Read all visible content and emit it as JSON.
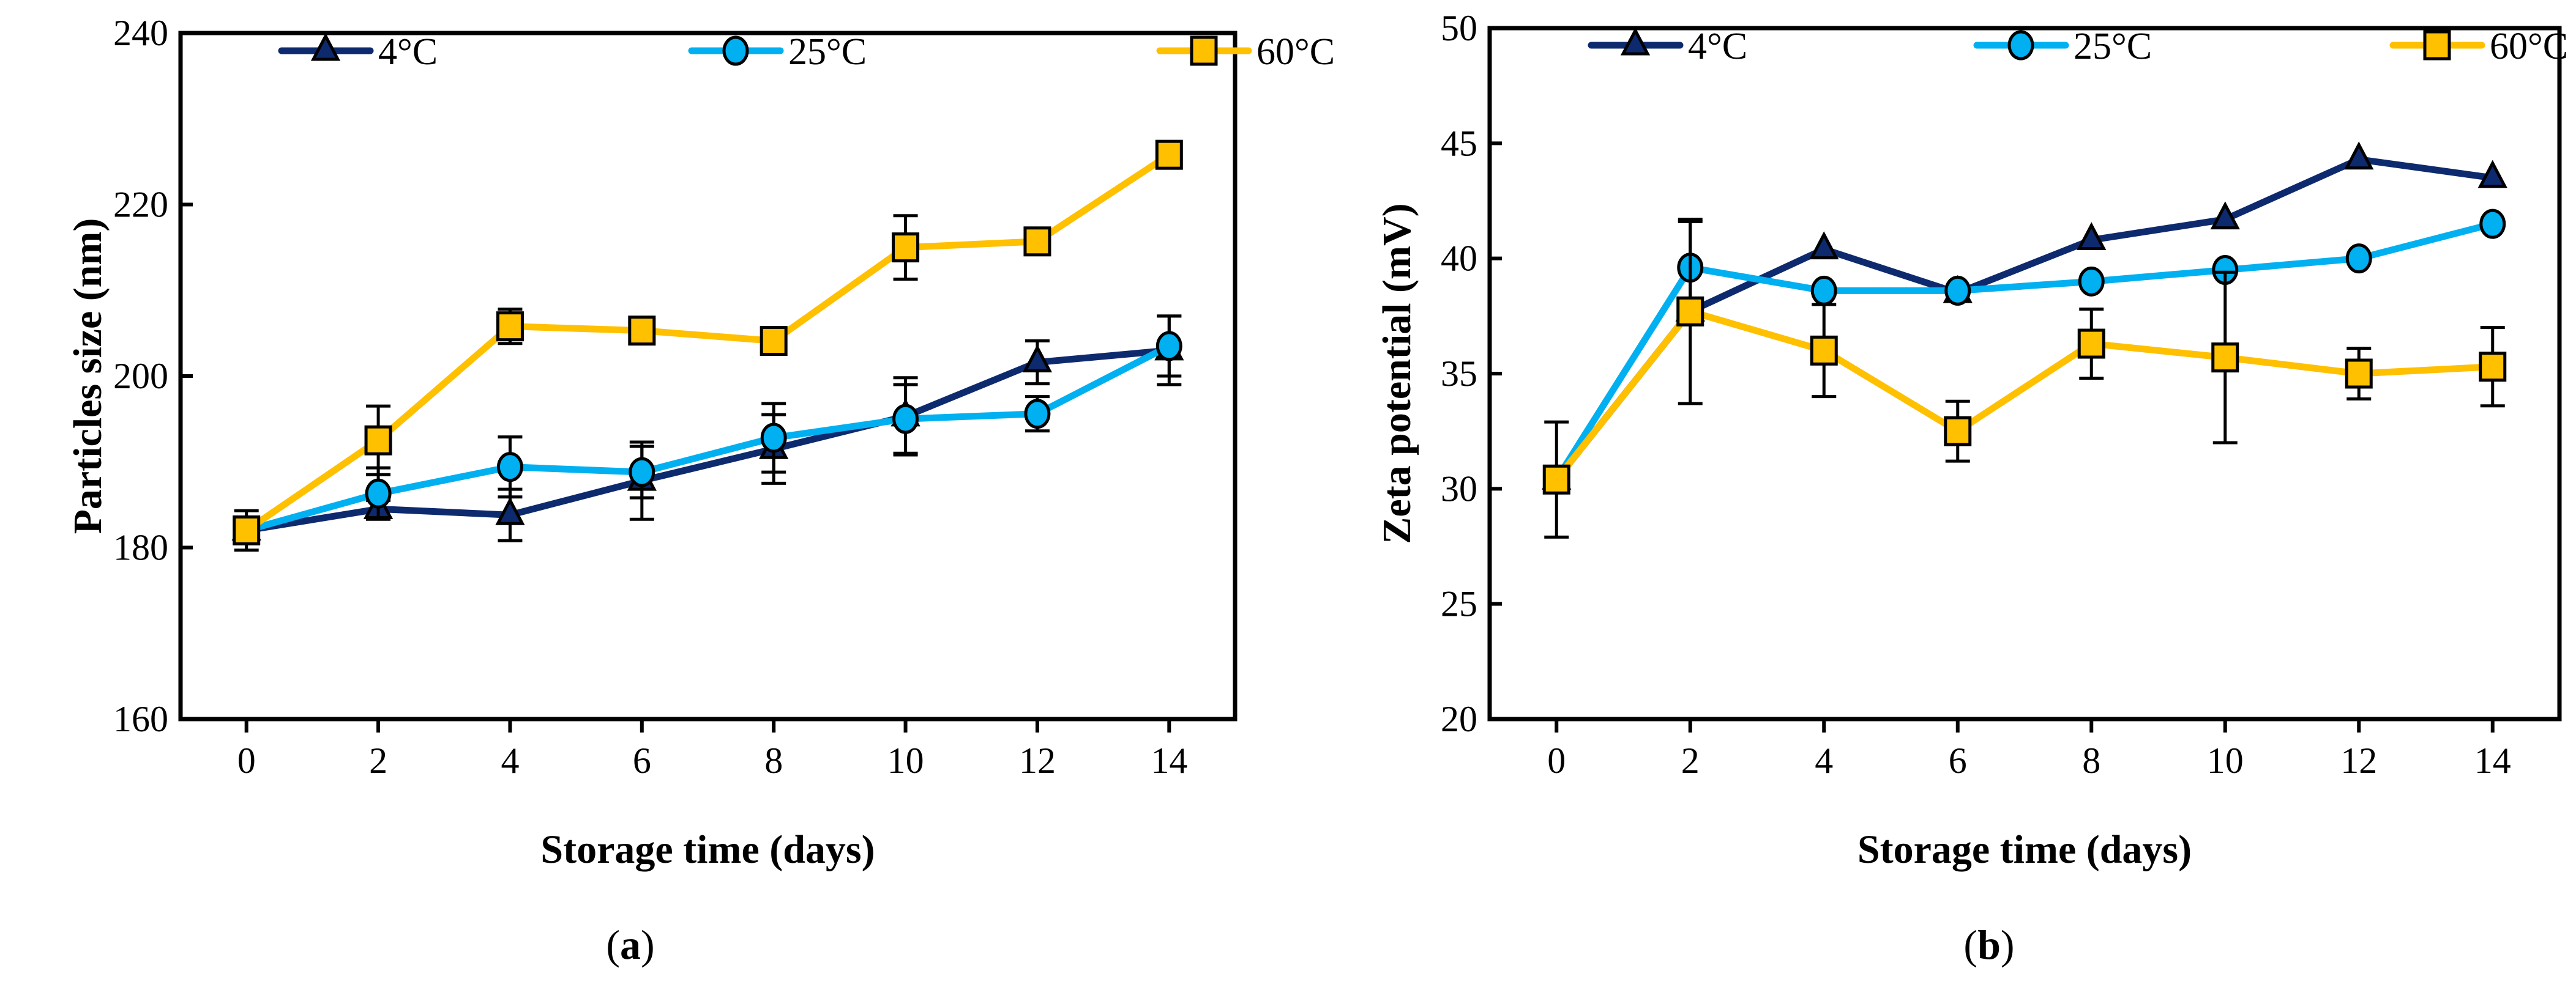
{
  "colors": {
    "4C": "#0e2a6e",
    "25C": "#00b0f0",
    "60C": "#ffc000"
  },
  "chart_data": [
    {
      "type": "line",
      "panel_label": "a",
      "xlabel": "Storage time (days)",
      "ylabel": "Particles size (nm)",
      "x": [
        0,
        2,
        4,
        6,
        8,
        10,
        12,
        14
      ],
      "xticks": [
        "0",
        "2",
        "4",
        "6",
        "8",
        "10",
        "12",
        "14"
      ],
      "xlim": [
        -1,
        15
      ],
      "ylim": [
        160,
        240
      ],
      "yticks": [
        "160",
        "180",
        "200",
        "220",
        "240"
      ],
      "legend": "top",
      "grid": false,
      "series": [
        {
          "name": "4°C",
          "marker": "triangle",
          "values": [
            182,
            184.5,
            183.8,
            187.8,
            191.5,
            195.3,
            201.6,
            203
          ],
          "errors": [
            1,
            1,
            3,
            4.5,
            4,
            4.5,
            2.5,
            4
          ]
        },
        {
          "name": "25°C",
          "marker": "circle",
          "values": [
            182,
            186.3,
            189.4,
            188.8,
            192.8,
            195,
            195.6,
            203.5
          ],
          "errors": [
            0.5,
            3,
            3.5,
            3,
            4,
            4,
            2,
            3.5
          ]
        },
        {
          "name": "60°C",
          "marker": "square",
          "values": [
            182,
            192.5,
            205.8,
            205.3,
            204.1,
            215,
            215.7,
            225.8
          ],
          "errors": [
            2.3,
            4,
            2,
            0.5,
            1,
            3.7,
            0.5,
            1.2
          ]
        }
      ]
    },
    {
      "type": "line",
      "panel_label": "b",
      "xlabel": "Storage time (days)",
      "ylabel": "Zeta potential (mV)",
      "x": [
        0,
        2,
        4,
        6,
        8,
        10,
        12,
        14
      ],
      "xticks": [
        "0",
        "2",
        "4",
        "6",
        "8",
        "10",
        "12",
        "14"
      ],
      "xlim": [
        -1,
        15
      ],
      "ylim": [
        20,
        50
      ],
      "yticks": [
        "20",
        "25",
        "30",
        "35",
        "40",
        "45",
        "50"
      ],
      "legend": "top",
      "grid": false,
      "series": [
        {
          "name": "4°C",
          "marker": "triangle",
          "values": [
            30.4,
            37.7,
            40.4,
            38.5,
            40.8,
            41.7,
            44.3,
            43.5
          ],
          "errors": [
            0,
            0,
            0,
            0,
            0,
            0,
            0,
            0
          ]
        },
        {
          "name": "25°C",
          "marker": "circle",
          "values": [
            30.4,
            39.6,
            38.6,
            38.6,
            39,
            39.5,
            40,
            41.5
          ],
          "errors": [
            0,
            2,
            0,
            0,
            0,
            0,
            0,
            0
          ]
        },
        {
          "name": "60°C",
          "marker": "square",
          "values": [
            30.4,
            37.7,
            36,
            32.5,
            36.3,
            35.7,
            35,
            35.3
          ],
          "errors": [
            2.5,
            4,
            2,
            1.3,
            1.5,
            3.7,
            1.1,
            1.7
          ]
        }
      ]
    }
  ]
}
